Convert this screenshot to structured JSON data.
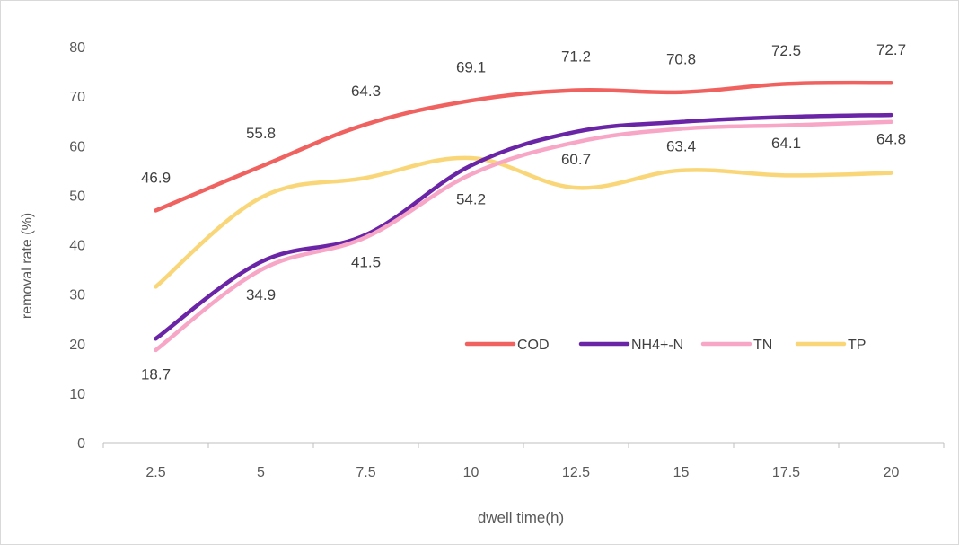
{
  "chart_data": {
    "type": "line",
    "title": "",
    "xlabel": "dwell time(h)",
    "ylabel": "removal rate (%)",
    "categories": [
      "2.5",
      "5",
      "7.5",
      "10",
      "12.5",
      "15",
      "17.5",
      "20"
    ],
    "ylim": [
      0,
      80
    ],
    "yticks": [
      "0",
      "10",
      "20",
      "30",
      "40",
      "50",
      "60",
      "70",
      "80"
    ],
    "grid": false,
    "legend_position": "inside-right",
    "series": [
      {
        "name": "COD",
        "color": "#f0625f",
        "values": [
          46.9,
          55.8,
          64.3,
          69.1,
          71.2,
          70.8,
          72.5,
          72.7
        ]
      },
      {
        "name": "NH4+-N",
        "color": "#6a24a6",
        "values": [
          21.0,
          36.5,
          42.0,
          56.0,
          62.8,
          64.8,
          65.8,
          66.2
        ]
      },
      {
        "name": "TN",
        "color": "#f7a6c6",
        "values": [
          18.7,
          34.9,
          41.5,
          54.2,
          60.7,
          63.4,
          64.1,
          64.8
        ]
      },
      {
        "name": "TP",
        "color": "#f9d678",
        "values": [
          31.5,
          49.5,
          53.5,
          57.5,
          51.5,
          55.0,
          54.0,
          54.5
        ]
      }
    ],
    "data_labels": [
      {
        "text": "46.9",
        "x": "2.5",
        "y": 52.5
      },
      {
        "text": "55.8",
        "x": "5",
        "y": 61.5
      },
      {
        "text": "64.3",
        "x": "7.5",
        "y": 70.0
      },
      {
        "text": "69.1",
        "x": "10",
        "y": 74.8
      },
      {
        "text": "71.2",
        "x": "12.5",
        "y": 77.0
      },
      {
        "text": "70.8",
        "x": "15",
        "y": 76.5
      },
      {
        "text": "72.5",
        "x": "17.5",
        "y": 78.2
      },
      {
        "text": "72.7",
        "x": "20",
        "y": 78.4
      },
      {
        "text": "18.7",
        "x": "2.5",
        "y": 12.8
      },
      {
        "text": "34.9",
        "x": "5",
        "y": 28.8
      },
      {
        "text": "41.5",
        "x": "7.5",
        "y": 35.5
      },
      {
        "text": "54.2",
        "x": "10",
        "y": 48.2
      },
      {
        "text": "60.7",
        "x": "12.5",
        "y": 56.2
      },
      {
        "text": "63.4",
        "x": "15",
        "y": 58.9
      },
      {
        "text": "64.1",
        "x": "17.5",
        "y": 59.5
      },
      {
        "text": "64.8",
        "x": "20",
        "y": 60.3
      }
    ]
  }
}
